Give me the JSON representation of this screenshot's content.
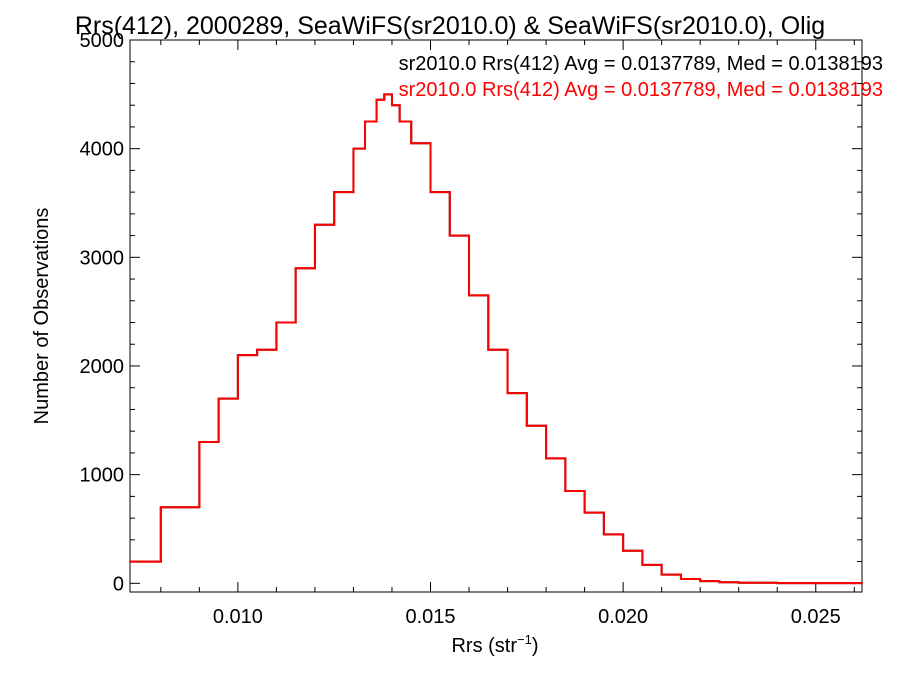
{
  "chart_data": {
    "type": "line",
    "title": "Rrs(412), 2000289, SeaWiFS(sr2010.0) & SeaWiFS(sr2010.0), Olig",
    "xlabel": "Rrs (str",
    "xlabel_superscript": "−1",
    "xlabel_close": ")",
    "ylabel": "Number of Observations",
    "xlim": [
      0.0072,
      0.0262
    ],
    "ylim": [
      -80,
      5000
    ],
    "xticks": [
      0.01,
      0.015,
      0.02,
      0.025
    ],
    "xtick_labels": [
      "0.010",
      "0.015",
      "0.020",
      "0.025"
    ],
    "yticks": [
      0,
      1000,
      2000,
      3000,
      4000,
      5000
    ],
    "ytick_labels": [
      "0",
      "1000",
      "2000",
      "3000",
      "4000",
      "5000"
    ],
    "grid": false,
    "legend": "top-right",
    "series": [
      {
        "name": "sr2010.0 Rrs(412) Avg = 0.0137789, Med = 0.0138193",
        "color": "#000000",
        "x": [
          0.0072,
          0.008,
          0.009,
          0.0095,
          0.01,
          0.0103,
          0.0105,
          0.011,
          0.0115,
          0.012,
          0.0125,
          0.013,
          0.0133,
          0.0136,
          0.0138,
          0.014,
          0.0142,
          0.0145,
          0.015,
          0.0155,
          0.016,
          0.0165,
          0.017,
          0.0175,
          0.018,
          0.0185,
          0.019,
          0.0195,
          0.02,
          0.0205,
          0.021,
          0.0215,
          0.022,
          0.0225,
          0.023,
          0.024,
          0.0262
        ],
        "y": [
          200,
          700,
          1300,
          1700,
          2100,
          2100,
          2150,
          2400,
          2900,
          3300,
          3600,
          4000,
          4250,
          4450,
          4500,
          4400,
          4250,
          4050,
          3600,
          3200,
          2650,
          2150,
          1750,
          1450,
          1150,
          850,
          650,
          450,
          300,
          170,
          80,
          40,
          20,
          10,
          5,
          2,
          0
        ]
      },
      {
        "name": "sr2010.0 Rrs(412) Avg = 0.0137789, Med = 0.0138193",
        "color": "#ff0000",
        "x": [
          0.0072,
          0.008,
          0.009,
          0.0095,
          0.01,
          0.0103,
          0.0105,
          0.011,
          0.0115,
          0.012,
          0.0125,
          0.013,
          0.0133,
          0.0136,
          0.0138,
          0.014,
          0.0142,
          0.0145,
          0.015,
          0.0155,
          0.016,
          0.0165,
          0.017,
          0.0175,
          0.018,
          0.0185,
          0.019,
          0.0195,
          0.02,
          0.0205,
          0.021,
          0.0215,
          0.022,
          0.0225,
          0.023,
          0.024,
          0.0262
        ],
        "y": [
          200,
          700,
          1300,
          1700,
          2100,
          2100,
          2150,
          2400,
          2900,
          3300,
          3600,
          4000,
          4250,
          4450,
          4500,
          4400,
          4250,
          4050,
          3600,
          3200,
          2650,
          2150,
          1750,
          1450,
          1150,
          850,
          650,
          450,
          300,
          170,
          80,
          40,
          20,
          10,
          5,
          2,
          0
        ]
      }
    ]
  }
}
